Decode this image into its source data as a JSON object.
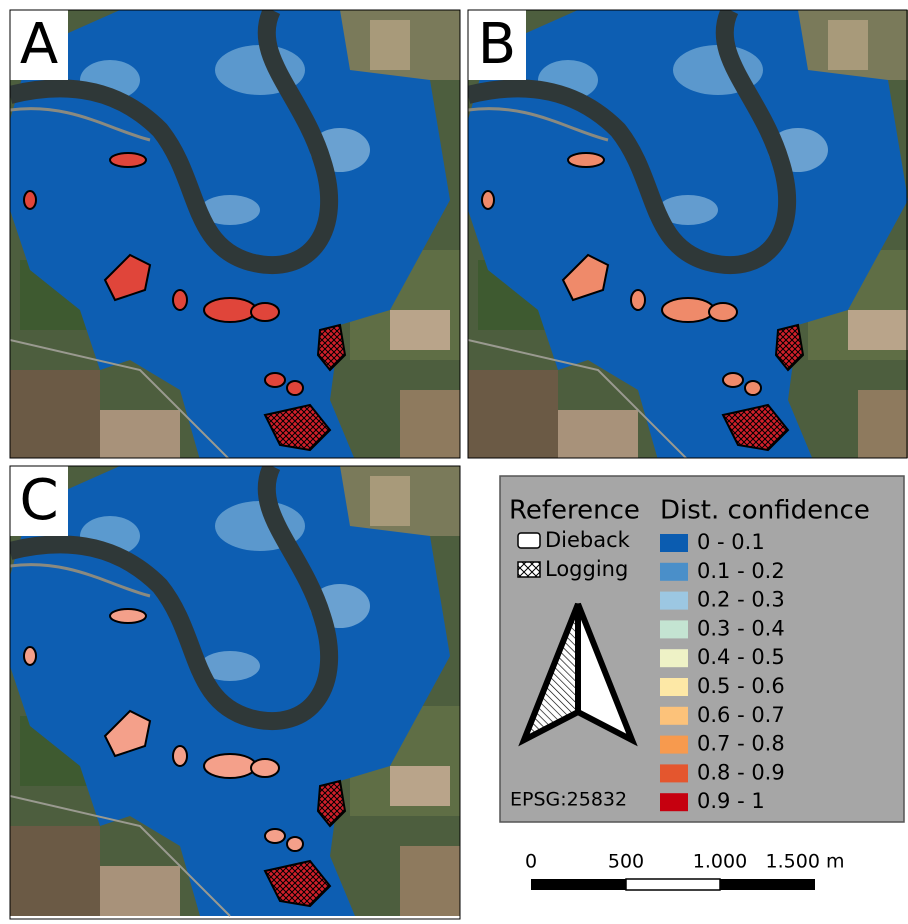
{
  "panels": [
    {
      "label": "A"
    },
    {
      "label": "B"
    },
    {
      "label": "C"
    }
  ],
  "legend": {
    "reference_title": "Reference",
    "reference_items": [
      "Dieback",
      "Logging"
    ],
    "confidence_title": "Dist. confidence",
    "classes": [
      {
        "label": "0 - 0.1",
        "color": "#0b5cb0"
      },
      {
        "label": "0.1 - 0.2",
        "color": "#4a8fc9"
      },
      {
        "label": "0.2 - 0.3",
        "color": "#9cc7e2"
      },
      {
        "label": "0.3 - 0.4",
        "color": "#c4e4d2"
      },
      {
        "label": "0.4 - 0.5",
        "color": "#eef2c6"
      },
      {
        "label": "0.5 - 0.6",
        "color": "#fde8a6"
      },
      {
        "label": "0.6 - 0.7",
        "color": "#fcc27a"
      },
      {
        "label": "0.7 - 0.8",
        "color": "#f79a4e"
      },
      {
        "label": "0.8 - 0.9",
        "color": "#e4562e"
      },
      {
        "label": "0.9 - 1",
        "color": "#c6000f"
      }
    ],
    "crs": "EPSG:25832"
  },
  "scale_bar": {
    "labels": [
      "0",
      "500",
      "1.000",
      "1.500 m"
    ]
  }
}
